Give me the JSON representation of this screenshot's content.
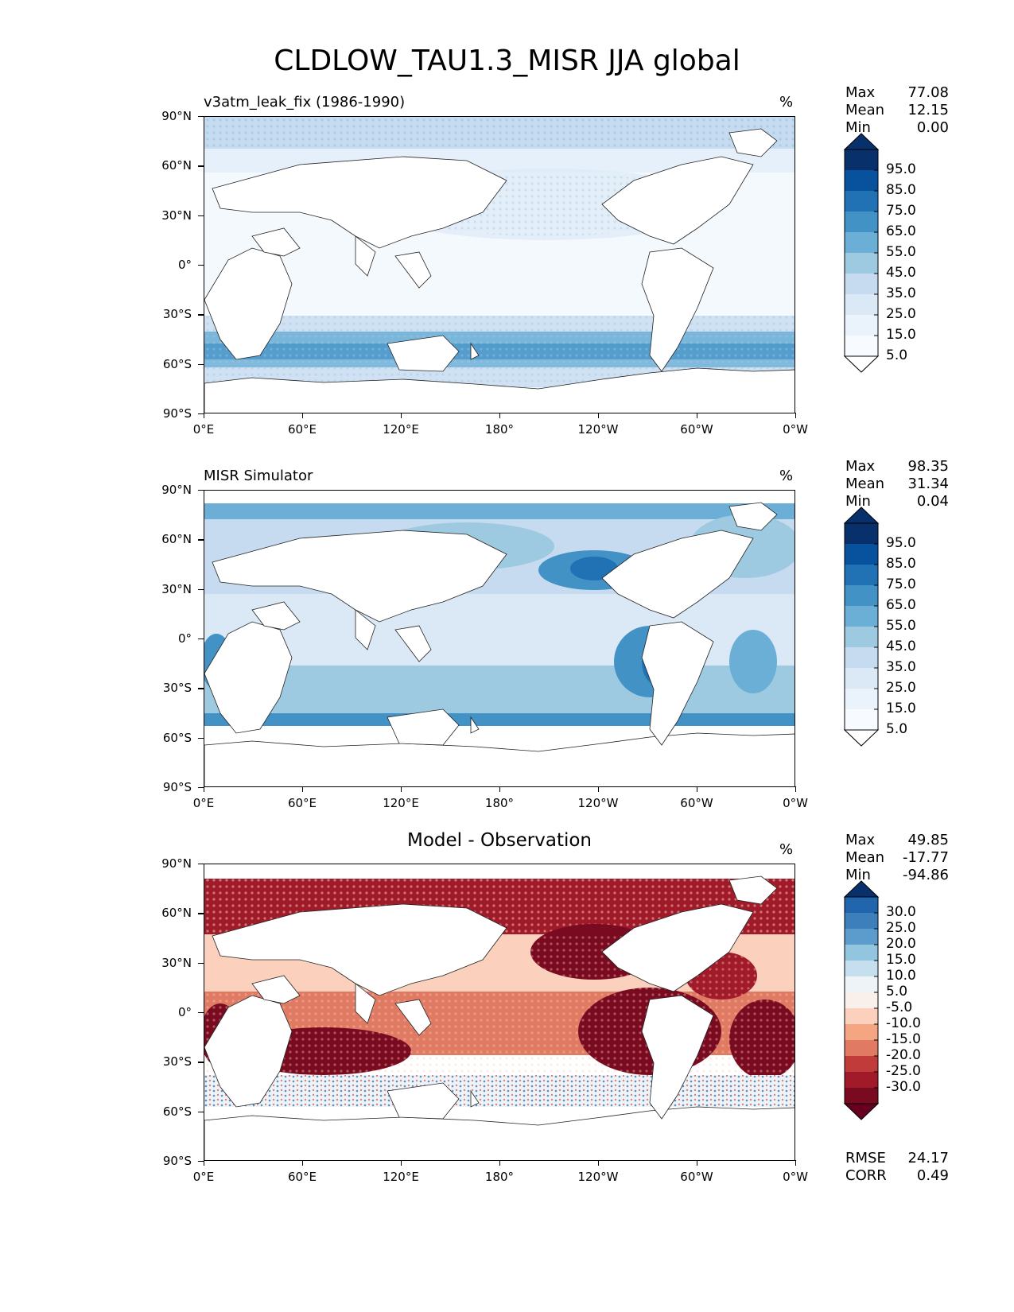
{
  "figure": {
    "title": "CLDLOW_TAU1.3_MISR JJA global"
  },
  "axes": {
    "lat_ticks": [
      "90°N",
      "60°N",
      "30°N",
      "0°",
      "30°S",
      "60°S",
      "90°S"
    ],
    "lon_ticks": [
      "0°E",
      "60°E",
      "120°E",
      "180°",
      "120°W",
      "60°W",
      "0°W"
    ]
  },
  "panels": [
    {
      "title": "v3atm_leak_fix (1986-1990)",
      "units": "%",
      "stats": {
        "max_label": "Max",
        "max": "77.08",
        "mean_label": "Mean",
        "mean": "12.15",
        "min_label": "Min",
        "min": "0.00"
      },
      "colorbar": {
        "labels": [
          "95.0",
          "85.0",
          "75.0",
          "65.0",
          "55.0",
          "45.0",
          "35.0",
          "25.0",
          "15.0",
          "5.0"
        ],
        "colors": [
          "#08306b",
          "#08519c",
          "#2171b5",
          "#4292c6",
          "#6baed6",
          "#9ecae1",
          "#c6dbef",
          "#dbe9f6",
          "#eaf3fb",
          "#f7fbff"
        ],
        "over_color": "#08306b",
        "under_color": "#ffffff"
      }
    },
    {
      "title": "MISR Simulator",
      "units": "%",
      "stats": {
        "max_label": "Max",
        "max": "98.35",
        "mean_label": "Mean",
        "mean": "31.34",
        "min_label": "Min",
        "min": "0.04"
      },
      "colorbar": {
        "labels": [
          "95.0",
          "85.0",
          "75.0",
          "65.0",
          "55.0",
          "45.0",
          "35.0",
          "25.0",
          "15.0",
          "5.0"
        ],
        "colors": [
          "#08306b",
          "#08519c",
          "#2171b5",
          "#4292c6",
          "#6baed6",
          "#9ecae1",
          "#c6dbef",
          "#dbe9f6",
          "#eaf3fb",
          "#f7fbff"
        ],
        "over_color": "#08306b",
        "under_color": "#ffffff"
      }
    },
    {
      "title": "Model - Observation",
      "units": "%",
      "stats": {
        "max_label": "Max",
        "max": "49.85",
        "mean_label": "Mean",
        "mean": "-17.77",
        "min_label": "Min",
        "min": "-94.86"
      },
      "colorbar": {
        "labels": [
          "30.0",
          "25.0",
          "20.0",
          "15.0",
          "10.0",
          "5.0",
          "-5.0",
          "-10.0",
          "-15.0",
          "-20.0",
          "-25.0",
          "-30.0"
        ],
        "colors": [
          "#2166ac",
          "#3d7fbb",
          "#5c9ccc",
          "#92c5de",
          "#c6dfee",
          "#eef3f7",
          "#f9f0ec",
          "#fbd0bd",
          "#f4a582",
          "#e07a63",
          "#c23b3b",
          "#a11a2a",
          "#7a0a20"
        ],
        "over_color": "#08306b",
        "under_color": "#67001f"
      },
      "metrics": {
        "rmse_label": "RMSE",
        "rmse": "24.17",
        "corr_label": "CORR",
        "corr": "0.49"
      }
    }
  ]
}
